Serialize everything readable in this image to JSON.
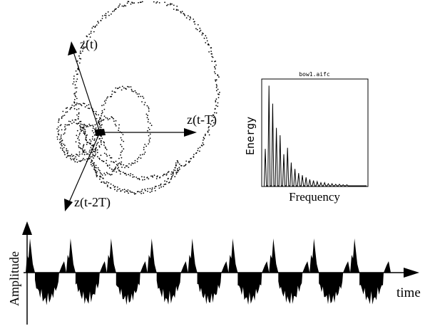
{
  "phase_space": {
    "axis_z_t": "z(t)",
    "axis_z_t_minus_T": "z(t-T)",
    "axis_z_t_minus_2T": "z(t-2T)"
  },
  "spectrum": {
    "file_label": "bow1.aifc",
    "ylabel": "Energy",
    "xlabel": "Frequency",
    "peak_heights": [
      0.35,
      0.95,
      0.78,
      0.55,
      0.48,
      0.3,
      0.36,
      0.22,
      0.16,
      0.12,
      0.1,
      0.08,
      0.06,
      0.05,
      0.04,
      0.03,
      0.03,
      0.02,
      0.02,
      0.015,
      0.015,
      0.01,
      0.01
    ]
  },
  "waveform": {
    "ylabel": "Amplitude",
    "xlabel": "time",
    "num_periods": 9
  },
  "colors": {
    "ink": "#000000",
    "background": "#ffffff"
  }
}
